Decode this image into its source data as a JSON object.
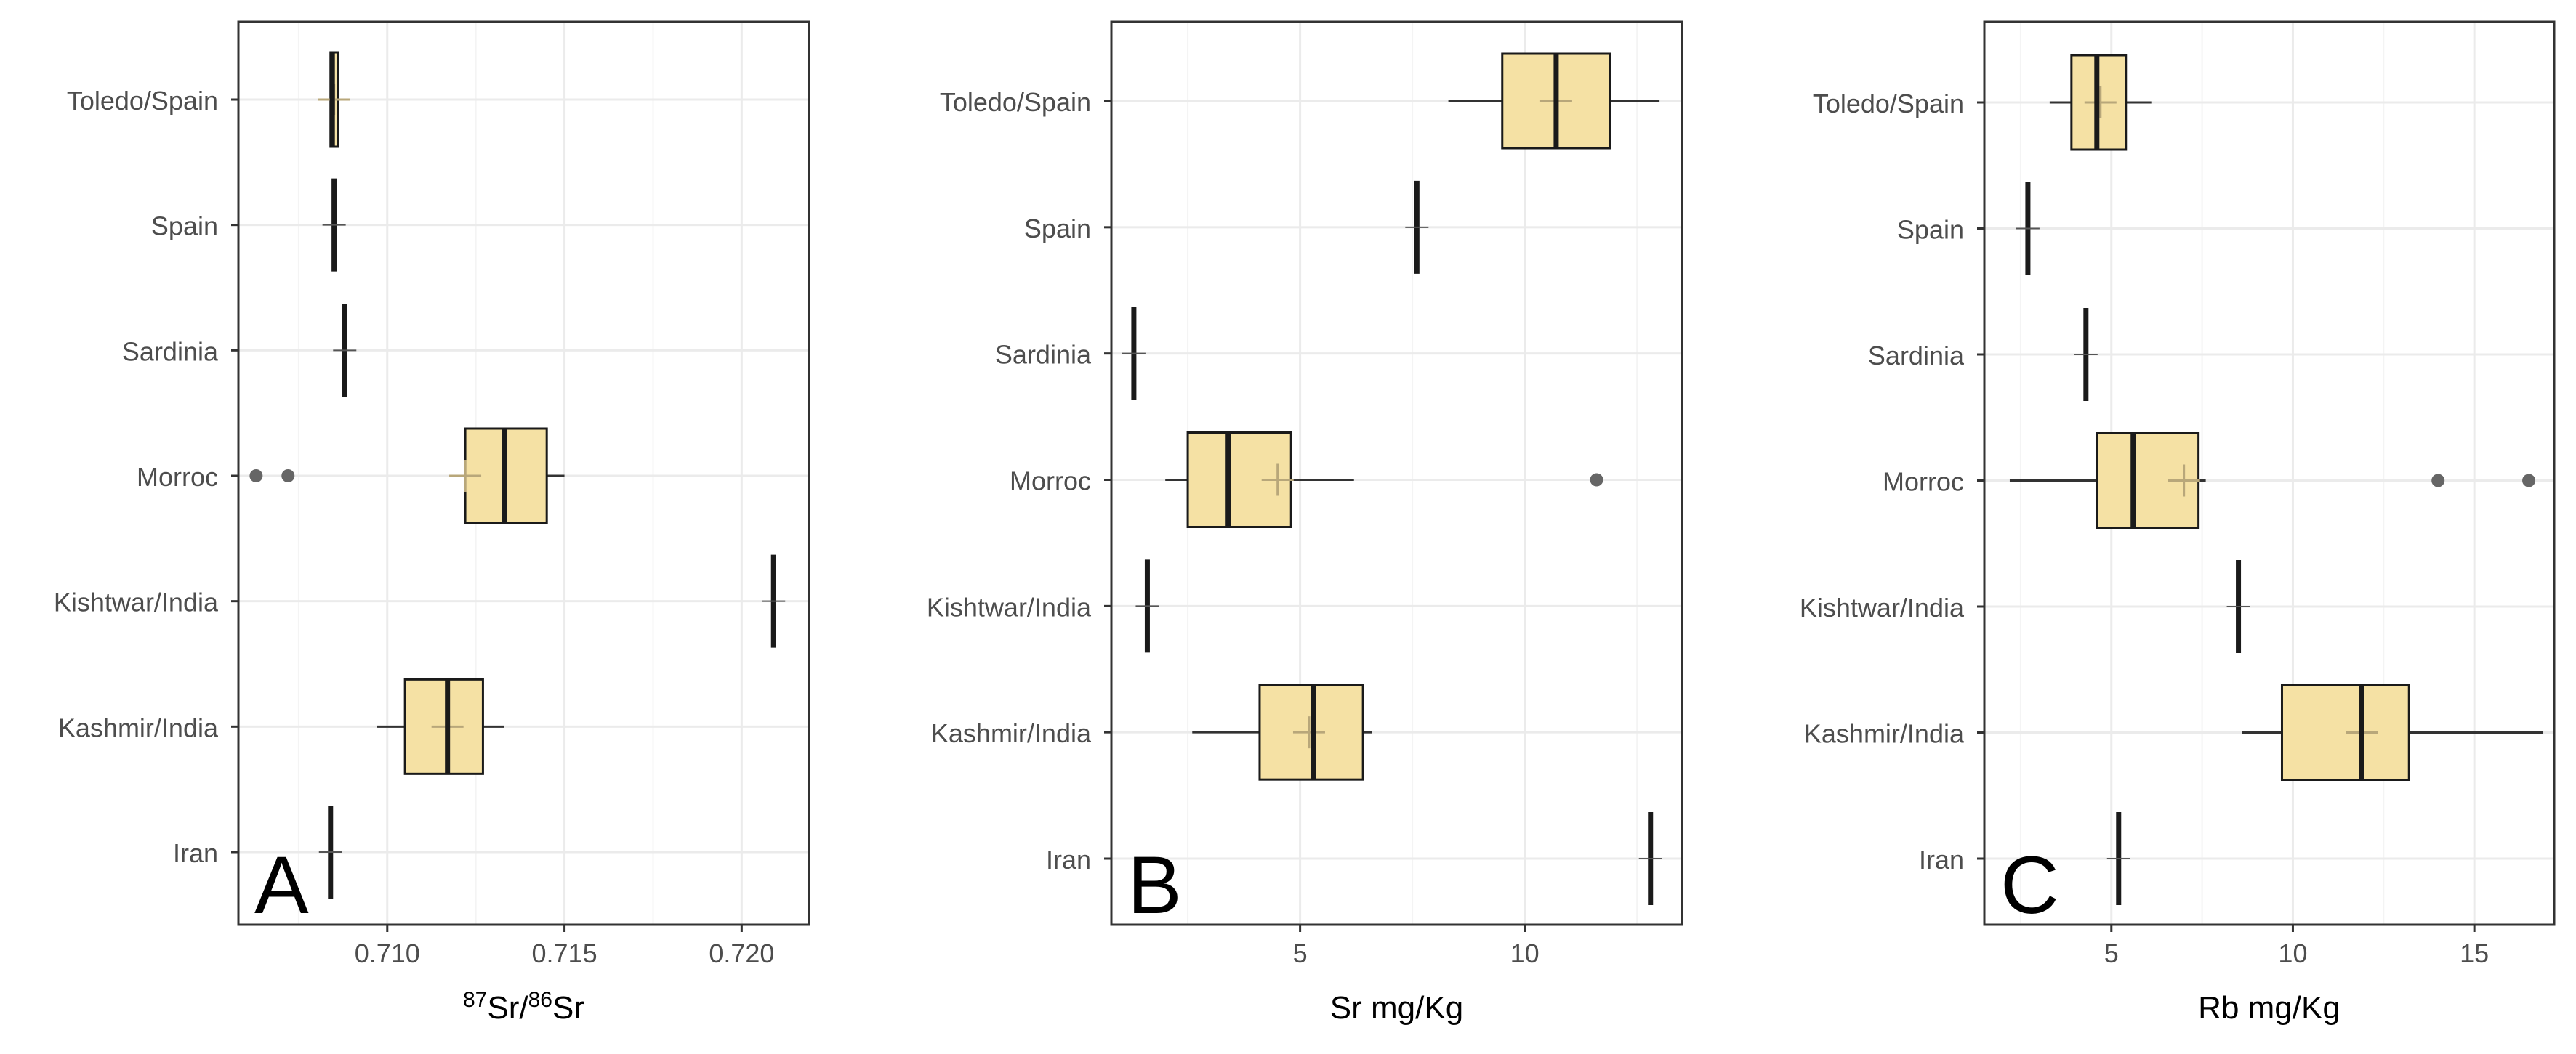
{
  "colors": {
    "box_fill": "#f5e1a4",
    "box_stroke": "#1a1a1a",
    "grid_major": "#ebebeb",
    "grid_minor": "#f4f4f4",
    "panel_border": "#333333",
    "axis_text": "#4d4d4d",
    "outlier": "#666666",
    "mean_mark": "#b8a77a"
  },
  "chart_data": [
    {
      "type": "boxplot",
      "orientation": "horizontal",
      "panel_label": "A",
      "xlabel": {
        "sup1": "87",
        "text1": "Sr/",
        "sup2": "86",
        "text2": "Sr"
      },
      "xlim": [
        0.7058,
        0.7219
      ],
      "xticks": [
        0.71,
        0.715,
        0.72
      ],
      "xtick_labels": [
        "0.710",
        "0.715",
        "0.720"
      ],
      "categories": [
        "Toledo/Spain",
        "Spain",
        "Sardinia",
        "Morroc",
        "Kishtwar/India",
        "Kashmir/India",
        "Iran"
      ],
      "boxes": [
        {
          "name": "Toledo/Spain",
          "min": 0.7084,
          "q1": 0.7084,
          "median": 0.70845,
          "q3": 0.7086,
          "max": 0.7087,
          "mean": 0.7085
        },
        {
          "name": "Spain",
          "min": 0.7085,
          "q1": 0.7085,
          "median": 0.7085,
          "q3": 0.7085,
          "max": 0.7085,
          "mean": 0.7085
        },
        {
          "name": "Sardinia",
          "min": 0.7088,
          "q1": 0.7088,
          "median": 0.7088,
          "q3": 0.7088,
          "max": 0.7088,
          "mean": 0.7088
        },
        {
          "name": "Morroc",
          "min": 0.7119,
          "q1": 0.7122,
          "median": 0.7133,
          "q3": 0.7145,
          "max": 0.715,
          "mean": 0.7122,
          "outliers": [
            0.7063,
            0.7072
          ]
        },
        {
          "name": "Kishtwar/India",
          "min": 0.7209,
          "q1": 0.7209,
          "median": 0.7209,
          "q3": 0.7209,
          "max": 0.7209,
          "mean": 0.7209
        },
        {
          "name": "Kashmir/India",
          "min": 0.7097,
          "q1": 0.7105,
          "median": 0.7117,
          "q3": 0.7127,
          "max": 0.7133,
          "mean": 0.7117
        },
        {
          "name": "Iran",
          "min": 0.7084,
          "q1": 0.7084,
          "median": 0.7084,
          "q3": 0.7084,
          "max": 0.7084,
          "mean": 0.7084
        }
      ]
    },
    {
      "type": "boxplot",
      "orientation": "horizontal",
      "panel_label": "B",
      "xlabel": {
        "text1": "Sr mg/Kg"
      },
      "xlim": [
        0.8,
        13.5
      ],
      "xticks": [
        5,
        10
      ],
      "xtick_labels": [
        "5",
        "10"
      ],
      "categories": [
        "Toledo/Spain",
        "Spain",
        "Sardinia",
        "Morroc",
        "Kishtwar/India",
        "Kashmir/India",
        "Iran"
      ],
      "boxes": [
        {
          "name": "Toledo/Spain",
          "min": 8.3,
          "q1": 9.5,
          "median": 10.7,
          "q3": 11.9,
          "max": 13.0,
          "mean": 10.7
        },
        {
          "name": "Spain",
          "min": 7.6,
          "q1": 7.6,
          "median": 7.6,
          "q3": 7.6,
          "max": 7.6,
          "mean": 7.6
        },
        {
          "name": "Sardinia",
          "min": 1.3,
          "q1": 1.3,
          "median": 1.3,
          "q3": 1.3,
          "max": 1.3,
          "mean": 1.3
        },
        {
          "name": "Morroc",
          "min": 2.0,
          "q1": 2.5,
          "median": 3.4,
          "q3": 4.8,
          "max": 6.2,
          "mean": 4.5,
          "outliers": [
            11.6
          ]
        },
        {
          "name": "Kishtwar/India",
          "min": 1.6,
          "q1": 1.6,
          "median": 1.6,
          "q3": 1.6,
          "max": 1.6,
          "mean": 1.6
        },
        {
          "name": "Kashmir/India",
          "min": 2.6,
          "q1": 4.1,
          "median": 5.3,
          "q3": 6.4,
          "max": 6.6,
          "mean": 5.2
        },
        {
          "name": "Iran",
          "min": 12.8,
          "q1": 12.8,
          "median": 12.8,
          "q3": 12.8,
          "max": 12.8,
          "mean": 12.8
        }
      ]
    },
    {
      "type": "boxplot",
      "orientation": "horizontal",
      "panel_label": "C",
      "xlabel": {
        "text1": "Rb mg/Kg"
      },
      "xlim": [
        1.5,
        17.2
      ],
      "xticks": [
        5,
        10,
        15
      ],
      "xtick_labels": [
        "5",
        "10",
        "15"
      ],
      "categories": [
        "Toledo/Spain",
        "Spain",
        "Sardinia",
        "Morroc",
        "Kishtwar/India",
        "Kashmir/India",
        "Iran"
      ],
      "boxes": [
        {
          "name": "Toledo/Spain",
          "min": 3.3,
          "q1": 3.9,
          "median": 4.6,
          "q3": 5.4,
          "max": 6.1,
          "mean": 4.7
        },
        {
          "name": "Spain",
          "min": 2.7,
          "q1": 2.7,
          "median": 2.7,
          "q3": 2.7,
          "max": 2.7,
          "mean": 2.7
        },
        {
          "name": "Sardinia",
          "min": 4.3,
          "q1": 4.3,
          "median": 4.3,
          "q3": 4.3,
          "max": 4.3,
          "mean": 4.3
        },
        {
          "name": "Morroc",
          "min": 2.2,
          "q1": 4.6,
          "median": 5.6,
          "q3": 7.4,
          "max": 7.6,
          "mean": 7.0,
          "outliers": [
            14.0,
            16.5
          ]
        },
        {
          "name": "Kishtwar/India",
          "min": 8.5,
          "q1": 8.5,
          "median": 8.5,
          "q3": 8.5,
          "max": 8.5,
          "mean": 8.5
        },
        {
          "name": "Kashmir/India",
          "min": 8.6,
          "q1": 9.7,
          "median": 11.9,
          "q3": 13.2,
          "max": 16.9,
          "mean": 11.9
        },
        {
          "name": "Iran",
          "min": 5.2,
          "q1": 5.2,
          "median": 5.2,
          "q3": 5.2,
          "max": 5.2,
          "mean": 5.2
        }
      ]
    }
  ]
}
